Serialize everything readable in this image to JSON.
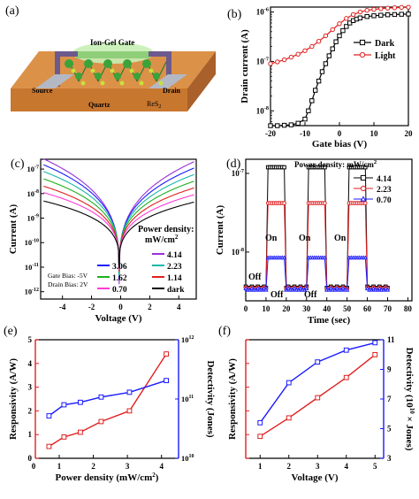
{
  "panel_labels": [
    "(a)",
    "(b)",
    "(c)",
    "(d)",
    "(e)",
    "(f)"
  ],
  "device": {
    "gate_label": "Ion-Gel Gate",
    "source_label": "Source",
    "drain_label": "Drain",
    "channel_label": "ReS",
    "channel_sub": "2",
    "substrate_label": "Quartz",
    "colors": {
      "substrate": "#c8772f",
      "substrate_top": "#dc9148",
      "gate_glow": "#c7f0b5",
      "atom_big": "#3aa33a",
      "atom_small": "#c9e03a",
      "contact": "#6d5a8c"
    }
  },
  "chart_data": [
    {
      "id": "b",
      "type": "line",
      "xlabel": "Gate bias (V)",
      "ylabel": "Drain current (A)",
      "xlim": [
        -20,
        20
      ],
      "xticks": [
        -20,
        -10,
        0,
        10,
        20
      ],
      "ylim_log": [
        -8.3,
        -5.9
      ],
      "yscale": "log",
      "yticks": [
        {
          "value": 1e-08,
          "label": "10",
          "exp": "-8"
        },
        {
          "value": 1e-07,
          "label": "10",
          "exp": "-7"
        },
        {
          "value": 1e-06,
          "label": "10",
          "exp": "-6"
        }
      ],
      "legend": "right",
      "series": [
        {
          "name": "Dark",
          "color": "#000000",
          "marker": "square",
          "x": [
            -20,
            -18,
            -16,
            -14,
            -12,
            -10,
            -9,
            -8,
            -7,
            -6,
            -5,
            -4,
            -3,
            -2,
            -1,
            0,
            1,
            2,
            3,
            4,
            5,
            6,
            8,
            10,
            12,
            14,
            16,
            18,
            20
          ],
          "y": [
            5e-09,
            5e-09,
            5.1e-09,
            5.2e-09,
            5.6e-09,
            6.8e-09,
            1e-08,
            1.6e-08,
            2.6e-08,
            4e-08,
            6.2e-08,
            9e-08,
            1.3e-07,
            1.8e-07,
            2.5e-07,
            3.3e-07,
            4.2e-07,
            5.1e-07,
            6e-07,
            6.7e-07,
            7.2e-07,
            7.6e-07,
            8.1e-07,
            8.4e-07,
            8.6e-07,
            8.8e-07,
            8.9e-07,
            9e-07,
            9.1e-07
          ]
        },
        {
          "name": "Light",
          "color": "#e02020",
          "marker": "circle",
          "x": [
            -20,
            -18,
            -16,
            -14,
            -12,
            -10,
            -8,
            -6,
            -4,
            -2,
            0,
            2,
            4,
            6,
            8,
            10,
            12,
            14,
            16,
            18,
            20
          ],
          "y": [
            9e-08,
            9.8e-08,
            1.08e-07,
            1.22e-07,
            1.4e-07,
            1.65e-07,
            2e-07,
            2.55e-07,
            3.3e-07,
            4.4e-07,
            5.8e-07,
            7.4e-07,
            8.9e-07,
            1e-06,
            1.08e-06,
            1.13e-06,
            1.17e-06,
            1.2e-06,
            1.22e-06,
            1.24e-06,
            1.25e-06
          ]
        }
      ]
    },
    {
      "id": "c",
      "type": "line",
      "xlabel": "Voltage (V)",
      "ylabel": "Current (A)",
      "xlim": [
        -5.5,
        5.2
      ],
      "xticks": [
        -4,
        -2,
        0,
        2,
        4
      ],
      "ylim_log": [
        -12.3,
        -6.6
      ],
      "yscale": "log",
      "yticks": [
        {
          "value": 1e-12,
          "label": "10",
          "exp": "-12"
        },
        {
          "value": 1e-11,
          "label": "10",
          "exp": "-11"
        },
        {
          "value": 1e-10,
          "label": "10",
          "exp": "-10"
        },
        {
          "value": 1e-09,
          "label": "10",
          "exp": "-9"
        },
        {
          "value": 1e-08,
          "label": "10",
          "exp": "-8"
        },
        {
          "value": 1e-07,
          "label": "10",
          "exp": "-7"
        }
      ],
      "legend_title_line1": "Power density:",
      "legend_title_line2": "mW/cm",
      "legend_title_sup": "2",
      "annotations": [
        "Gate Bias: -5V",
        "Drain Bias: 2V"
      ],
      "series": [
        {
          "name": "4.14",
          "color": "#9b30d8",
          "left": 2.6e-07,
          "right": 2e-07
        },
        {
          "name": "3.06",
          "color": "#1a1aff",
          "left": 1.5e-07,
          "right": 1.1e-07
        },
        {
          "name": "2.23",
          "color": "#17b8a8",
          "left": 8e-08,
          "right": 6e-08
        },
        {
          "name": "1.62",
          "color": "#20b020",
          "left": 4e-08,
          "right": 3.2e-08
        },
        {
          "name": "1.14",
          "color": "#e02020",
          "left": 2e-08,
          "right": 1.7e-08
        },
        {
          "name": "0.70",
          "color": "#ff3ad8",
          "left": 1.1e-08,
          "right": 9e-09
        },
        {
          "name": "dark",
          "color": "#000000",
          "left": 5e-09,
          "right": 4.5e-09
        }
      ]
    },
    {
      "id": "d",
      "type": "line",
      "xlabel": "Time (sec)",
      "ylabel": "Current (A)",
      "xlim": [
        0,
        82
      ],
      "xticks": [
        0,
        10,
        20,
        30,
        40,
        50,
        60,
        70,
        80
      ],
      "ylim_log": [
        -8.62,
        -6.82
      ],
      "yscale": "log",
      "yticks": [
        {
          "value": 1e-08,
          "label": "10",
          "exp": "-8"
        },
        {
          "value": 1e-07,
          "label": "10",
          "exp": "-7"
        }
      ],
      "legend_title": "Power density:  mW/cm",
      "legend_title_sup": "2",
      "annotations": [
        "Off",
        "Off",
        "Off",
        "On",
        "On",
        "On"
      ],
      "series": [
        {
          "name": "4.14",
          "color": "#000000",
          "marker": "square",
          "off": 3.5e-09,
          "on": 1.2e-07
        },
        {
          "name": "2.23",
          "color": "#e02020",
          "marker": "circle",
          "off": 3.4e-09,
          "on": 4.2e-08
        },
        {
          "name": "0.70",
          "color": "#1a1aff",
          "marker": "triangle",
          "off": 3.3e-09,
          "on": 8.5e-09
        }
      ],
      "on_windows": [
        [
          10,
          20
        ],
        [
          30,
          40
        ],
        [
          50,
          60
        ]
      ]
    },
    {
      "id": "e",
      "type": "line",
      "xlabel": "Power density (mW/cm",
      "xlabel_sup": "2",
      "xlabel_end": ")",
      "ylabel_left": "Responsivity (A/W)",
      "ylabel_right": "Detectivity (Jones)",
      "xlim": [
        0.3,
        4.5
      ],
      "xticks": [
        0,
        1,
        2,
        3,
        4
      ],
      "ylim_left": [
        0,
        5
      ],
      "yticks_left": [
        0,
        1,
        2,
        3,
        4,
        5
      ],
      "ylim_right_log": [
        10,
        12
      ],
      "yticks_right": [
        {
          "value": 10000000000.0,
          "label": "10",
          "exp": "10"
        },
        {
          "value": 100000000000.0,
          "label": "10",
          "exp": "11"
        },
        {
          "value": 1000000000000.0,
          "label": "10",
          "exp": "12"
        }
      ],
      "series": [
        {
          "name": "Responsivity",
          "color": "#e02020",
          "marker": "square",
          "axis": "left",
          "x": [
            0.7,
            1.14,
            1.62,
            2.23,
            3.06,
            4.14
          ],
          "y": [
            0.5,
            0.9,
            1.1,
            1.55,
            2.0,
            4.4
          ]
        },
        {
          "name": "Detectivity",
          "color": "#1a1aff",
          "marker": "square",
          "axis": "right",
          "x": [
            0.7,
            1.14,
            1.62,
            2.23,
            3.06,
            4.14
          ],
          "y": [
            52000000000.0,
            80000000000.0,
            88000000000.0,
            108000000000.0,
            130000000000.0,
            205000000000.0
          ]
        }
      ]
    },
    {
      "id": "f",
      "type": "line",
      "xlabel": "Voltage (V)",
      "ylabel_left": "Responsivity (A/W)",
      "ylabel_right_pre": "Detectivity (10",
      "ylabel_right_sup": "10",
      "ylabel_right_post": " × Jones)",
      "xlim": [
        0.5,
        5.3
      ],
      "xticks": [
        1,
        2,
        3,
        4,
        5
      ],
      "ylim_left": [
        0.2,
        1.55
      ],
      "yticks_left": [],
      "ylim_right": [
        3,
        11
      ],
      "yticks_right": [
        3,
        5,
        7,
        9,
        11
      ],
      "series": [
        {
          "name": "Responsivity",
          "color": "#e02020",
          "marker": "square",
          "axis": "left",
          "x": [
            1,
            2,
            3,
            4,
            5
          ],
          "y": [
            0.45,
            0.66,
            0.89,
            1.12,
            1.38
          ]
        },
        {
          "name": "Detectivity",
          "color": "#1a1aff",
          "marker": "square",
          "axis": "right",
          "x": [
            1,
            2,
            3,
            4,
            5
          ],
          "y": [
            5.4,
            8.1,
            9.5,
            10.3,
            10.8
          ]
        }
      ]
    }
  ]
}
